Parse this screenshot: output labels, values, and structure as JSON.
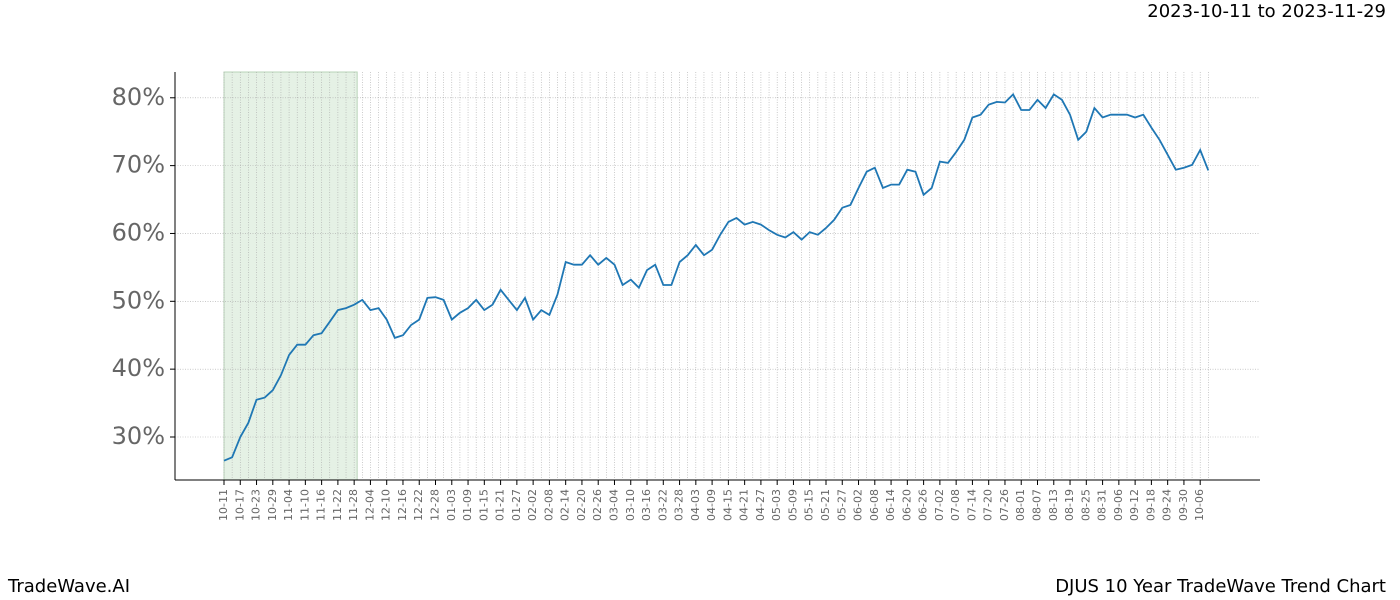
{
  "chart_data": {
    "type": "line",
    "title": "2023-10-11 to 2023-11-29",
    "footer_left": "TradeWave.AI",
    "footer_right": "DJUS 10 Year TradeWave Trend Chart",
    "categories": [
      "10-11",
      null,
      "10-17",
      null,
      "10-23",
      null,
      "10-29",
      null,
      "11-04",
      null,
      "11-10",
      null,
      "11-16",
      null,
      "11-22",
      null,
      "11-28",
      null,
      "12-04",
      null,
      "12-10",
      null,
      "12-16",
      null,
      "12-22",
      null,
      "12-28",
      null,
      "01-03",
      null,
      "01-09",
      null,
      "01-15",
      null,
      "01-21",
      null,
      "01-27",
      null,
      "02-02",
      null,
      "02-08",
      null,
      "02-14",
      null,
      "02-20",
      null,
      "02-26",
      null,
      "03-04",
      null,
      "03-10",
      null,
      "03-16",
      null,
      "03-22",
      null,
      "03-28",
      null,
      "04-03",
      null,
      "04-09",
      null,
      "04-15",
      null,
      "04-21",
      null,
      "04-27",
      null,
      "05-03",
      null,
      "05-09",
      null,
      "05-15",
      null,
      "05-21",
      null,
      "05-27",
      null,
      "06-02",
      null,
      "06-08",
      null,
      "06-14",
      null,
      "06-20",
      null,
      "06-26",
      null,
      "07-02",
      null,
      "07-08",
      null,
      "07-14",
      null,
      "07-20",
      null,
      "07-26",
      null,
      "08-01",
      null,
      "08-07",
      null,
      "08-13",
      null,
      "08-19",
      null,
      "08-25",
      null,
      "08-31",
      null,
      "09-06",
      null,
      "09-12",
      null,
      "09-18",
      null,
      "09-24",
      null,
      "09-30",
      null,
      "10-06",
      null
    ],
    "series": [
      {
        "color": "#1f77b4",
        "values": [
          26.5,
          27.0,
          30.0,
          32.1,
          35.5,
          35.8,
          36.9,
          39.1,
          42.1,
          43.6,
          43.6,
          45.0,
          45.3,
          47.0,
          48.7,
          49.0,
          49.5,
          50.2,
          48.7,
          49.0,
          47.3,
          44.6,
          45.0,
          46.5,
          47.3,
          50.5,
          50.6,
          50.2,
          47.3,
          48.3,
          49.0,
          50.2,
          48.7,
          49.5,
          51.7,
          50.2,
          48.7,
          50.5,
          47.3,
          48.7,
          48.0,
          51.0,
          55.8,
          55.4,
          55.4,
          56.8,
          55.4,
          56.4,
          55.4,
          52.4,
          53.2,
          52.0,
          54.6,
          55.4,
          52.4,
          52.4,
          55.8,
          56.8,
          58.3,
          56.8,
          57.6,
          59.8,
          61.7,
          62.3,
          61.3,
          61.7,
          61.3,
          60.5,
          59.8,
          59.4,
          60.2,
          59.1,
          60.2,
          59.8,
          60.8,
          62.0,
          63.8,
          64.2,
          66.7,
          69.1,
          69.7,
          66.7,
          67.2,
          67.2,
          69.4,
          69.1,
          65.7,
          66.7,
          70.6,
          70.4,
          72.0,
          73.8,
          77.1,
          77.5,
          79.0,
          79.4,
          79.3,
          80.5,
          78.2,
          78.2,
          79.7,
          78.5,
          80.5,
          79.7,
          77.5,
          73.8,
          75.0,
          78.5,
          77.1,
          77.5,
          77.5,
          77.5,
          77.1,
          77.5,
          75.6,
          73.8,
          71.6,
          69.4,
          69.7,
          70.1,
          72.3,
          69.3
        ]
      }
    ],
    "highlight": [
      "10-11",
      "11-28"
    ],
    "highlight_color": "#e5f1e5",
    "ylim": [
      23.66,
      83.8
    ],
    "yticks": [
      {
        "value": 30,
        "label": "30%"
      },
      {
        "value": 40,
        "label": "40%"
      },
      {
        "value": 50,
        "label": "50%"
      },
      {
        "value": 60,
        "label": "60%"
      },
      {
        "value": 70,
        "label": "70%"
      },
      {
        "value": 80,
        "label": "80%"
      }
    ],
    "grid": true
  }
}
